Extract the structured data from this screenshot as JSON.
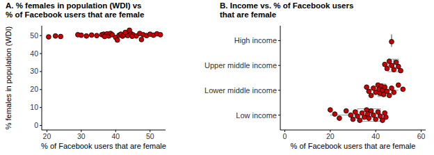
{
  "chart_data": [
    {
      "type": "scatter",
      "title": "A. % females in population (WDI) vs\n% of Facebook users that are female",
      "x_label": "% of Facebook users that are female",
      "y_label": "% females in population (WDI)",
      "color": "#cc0000",
      "marker": "circle",
      "xlim": [
        18.5,
        54.5
      ],
      "xticks": [
        20,
        30,
        40,
        50
      ],
      "ylim": [
        -2.5,
        55.5
      ],
      "yticks": [
        0,
        10,
        20,
        30,
        40,
        50
      ],
      "x": [
        20.5,
        22.5,
        24,
        29,
        30,
        31.5,
        33,
        34.5,
        36,
        36.5,
        37,
        37.5,
        38,
        38.5,
        39,
        40,
        40.5,
        41,
        41.5,
        42,
        42.5,
        43,
        43.5,
        44,
        44.5,
        45,
        46,
        47,
        47.5,
        48,
        49,
        50,
        51,
        52,
        53,
        36.8,
        44.8,
        42.8
      ],
      "values": [
        49.3,
        49.8,
        49.5,
        50.5,
        50.2,
        49.8,
        50.3,
        50,
        50.5,
        50.8,
        50.2,
        51,
        49.8,
        51.2,
        50.5,
        49,
        47.5,
        50.2,
        50.8,
        49.7,
        50.4,
        51.5,
        50,
        53,
        51,
        50.5,
        49.8,
        51.2,
        47.8,
        50.5,
        50,
        50.8,
        50.2,
        51,
        50.5,
        49.5,
        49.6,
        51.8
      ]
    },
    {
      "type": "box",
      "orientation": "horizontal",
      "title": "B. Income vs. % of Facebook users\nthat are female",
      "x_label": "% of Facebook users that are female",
      "color": "#cc0000",
      "categories": [
        "Low income",
        "Lower middle income",
        "Upper middle income",
        "High income"
      ],
      "xlim": [
        -2,
        62
      ],
      "xticks": [
        0,
        20,
        40,
        60
      ],
      "boxes": [
        {
          "low": 20,
          "q1": 32,
          "median": 37,
          "q3": 42,
          "high": 44.5
        },
        {
          "low": 36,
          "q1": 41,
          "median": 43,
          "q3": 44.5,
          "high": 50
        },
        {
          "low": 44,
          "q1": 45.5,
          "median": 48,
          "q3": 50,
          "high": 51
        },
        {
          "low": 46.5,
          "q1": 47,
          "median": 47,
          "q3": 47,
          "high": 47.5
        }
      ],
      "points": [
        [
          20,
          22,
          24,
          27,
          29,
          30,
          31,
          32,
          33,
          34,
          35,
          36,
          36.5,
          37,
          38,
          39,
          40,
          41,
          42,
          43,
          44,
          44.5
        ],
        [
          36,
          37,
          38,
          39,
          40,
          41,
          41.5,
          42,
          42.5,
          43,
          43.5,
          44,
          45,
          46,
          47,
          48,
          50,
          52
        ],
        [
          44,
          45,
          46,
          47,
          48,
          49,
          50,
          51
        ],
        [
          47
        ]
      ]
    }
  ]
}
